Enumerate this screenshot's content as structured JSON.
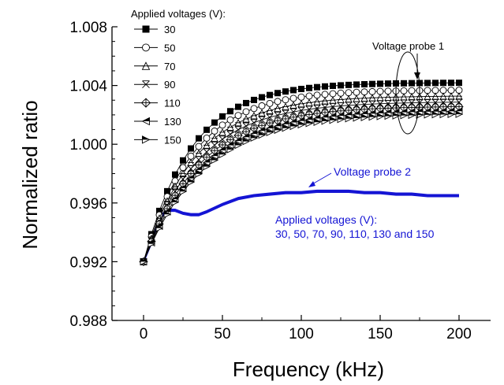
{
  "chart_data": {
    "type": "line",
    "xlabel": "Frequency (kHz)",
    "ylabel": "Normalized ratio",
    "xlim": [
      -20,
      220
    ],
    "ylim": [
      0.988,
      1.008
    ],
    "x_ticks": [
      0,
      50,
      100,
      150,
      200
    ],
    "y_ticks": [
      0.988,
      0.992,
      0.996,
      1.0,
      1.004,
      1.008
    ],
    "y_tick_labels": [
      "0.988",
      "0.992",
      "0.996",
      "1.000",
      "1.004",
      "1.008"
    ],
    "x_tick_labels": [
      "0",
      "50",
      "100",
      "150",
      "200"
    ],
    "legend": {
      "title": "Applied voltages (V):",
      "placement": "top-left"
    },
    "x": [
      0,
      5,
      10,
      15,
      20,
      25,
      30,
      35,
      40,
      45,
      50,
      55,
      60,
      65,
      70,
      75,
      80,
      85,
      90,
      95,
      100,
      105,
      110,
      115,
      120,
      125,
      130,
      135,
      140,
      145,
      150,
      155,
      160,
      165,
      170,
      175,
      180,
      185,
      190,
      195,
      200
    ],
    "series": [
      {
        "name": "30",
        "marker": "square-filled",
        "final": 1.0042
      },
      {
        "name": "50",
        "marker": "circle-open",
        "final": 1.0037
      },
      {
        "name": "70",
        "marker": "triangle-up",
        "final": 1.0033
      },
      {
        "name": "90",
        "marker": "x-triangle",
        "final": 1.0029
      },
      {
        "name": "110",
        "marker": "diamond-plus",
        "final": 1.0026
      },
      {
        "name": "130",
        "marker": "triangle-left",
        "final": 1.0023
      },
      {
        "name": "150",
        "marker": "triangle-right",
        "final": 1.0021
      }
    ],
    "probe2": {
      "color": "#1414d4",
      "label": "Voltage probe 2",
      "voltages_title": "Applied voltages (V):",
      "voltages_list": "30, 50, 70, 90, 110, 130 and 150",
      "points": [
        [
          0,
          0.992
        ],
        [
          5,
          0.9933
        ],
        [
          10,
          0.995
        ],
        [
          15,
          0.9955
        ],
        [
          20,
          0.9955
        ],
        [
          25,
          0.9953
        ],
        [
          30,
          0.9952
        ],
        [
          35,
          0.9952
        ],
        [
          40,
          0.9954
        ],
        [
          50,
          0.9959
        ],
        [
          60,
          0.9963
        ],
        [
          70,
          0.9965
        ],
        [
          80,
          0.9966
        ],
        [
          90,
          0.9967
        ],
        [
          100,
          0.9967
        ],
        [
          110,
          0.9968
        ],
        [
          120,
          0.9968
        ],
        [
          130,
          0.9968
        ],
        [
          140,
          0.9967
        ],
        [
          150,
          0.9967
        ],
        [
          160,
          0.9966
        ],
        [
          170,
          0.9966
        ],
        [
          180,
          0.9965
        ],
        [
          190,
          0.9965
        ],
        [
          200,
          0.9965
        ]
      ]
    },
    "annotations": {
      "probe1": "Voltage probe 1"
    }
  }
}
